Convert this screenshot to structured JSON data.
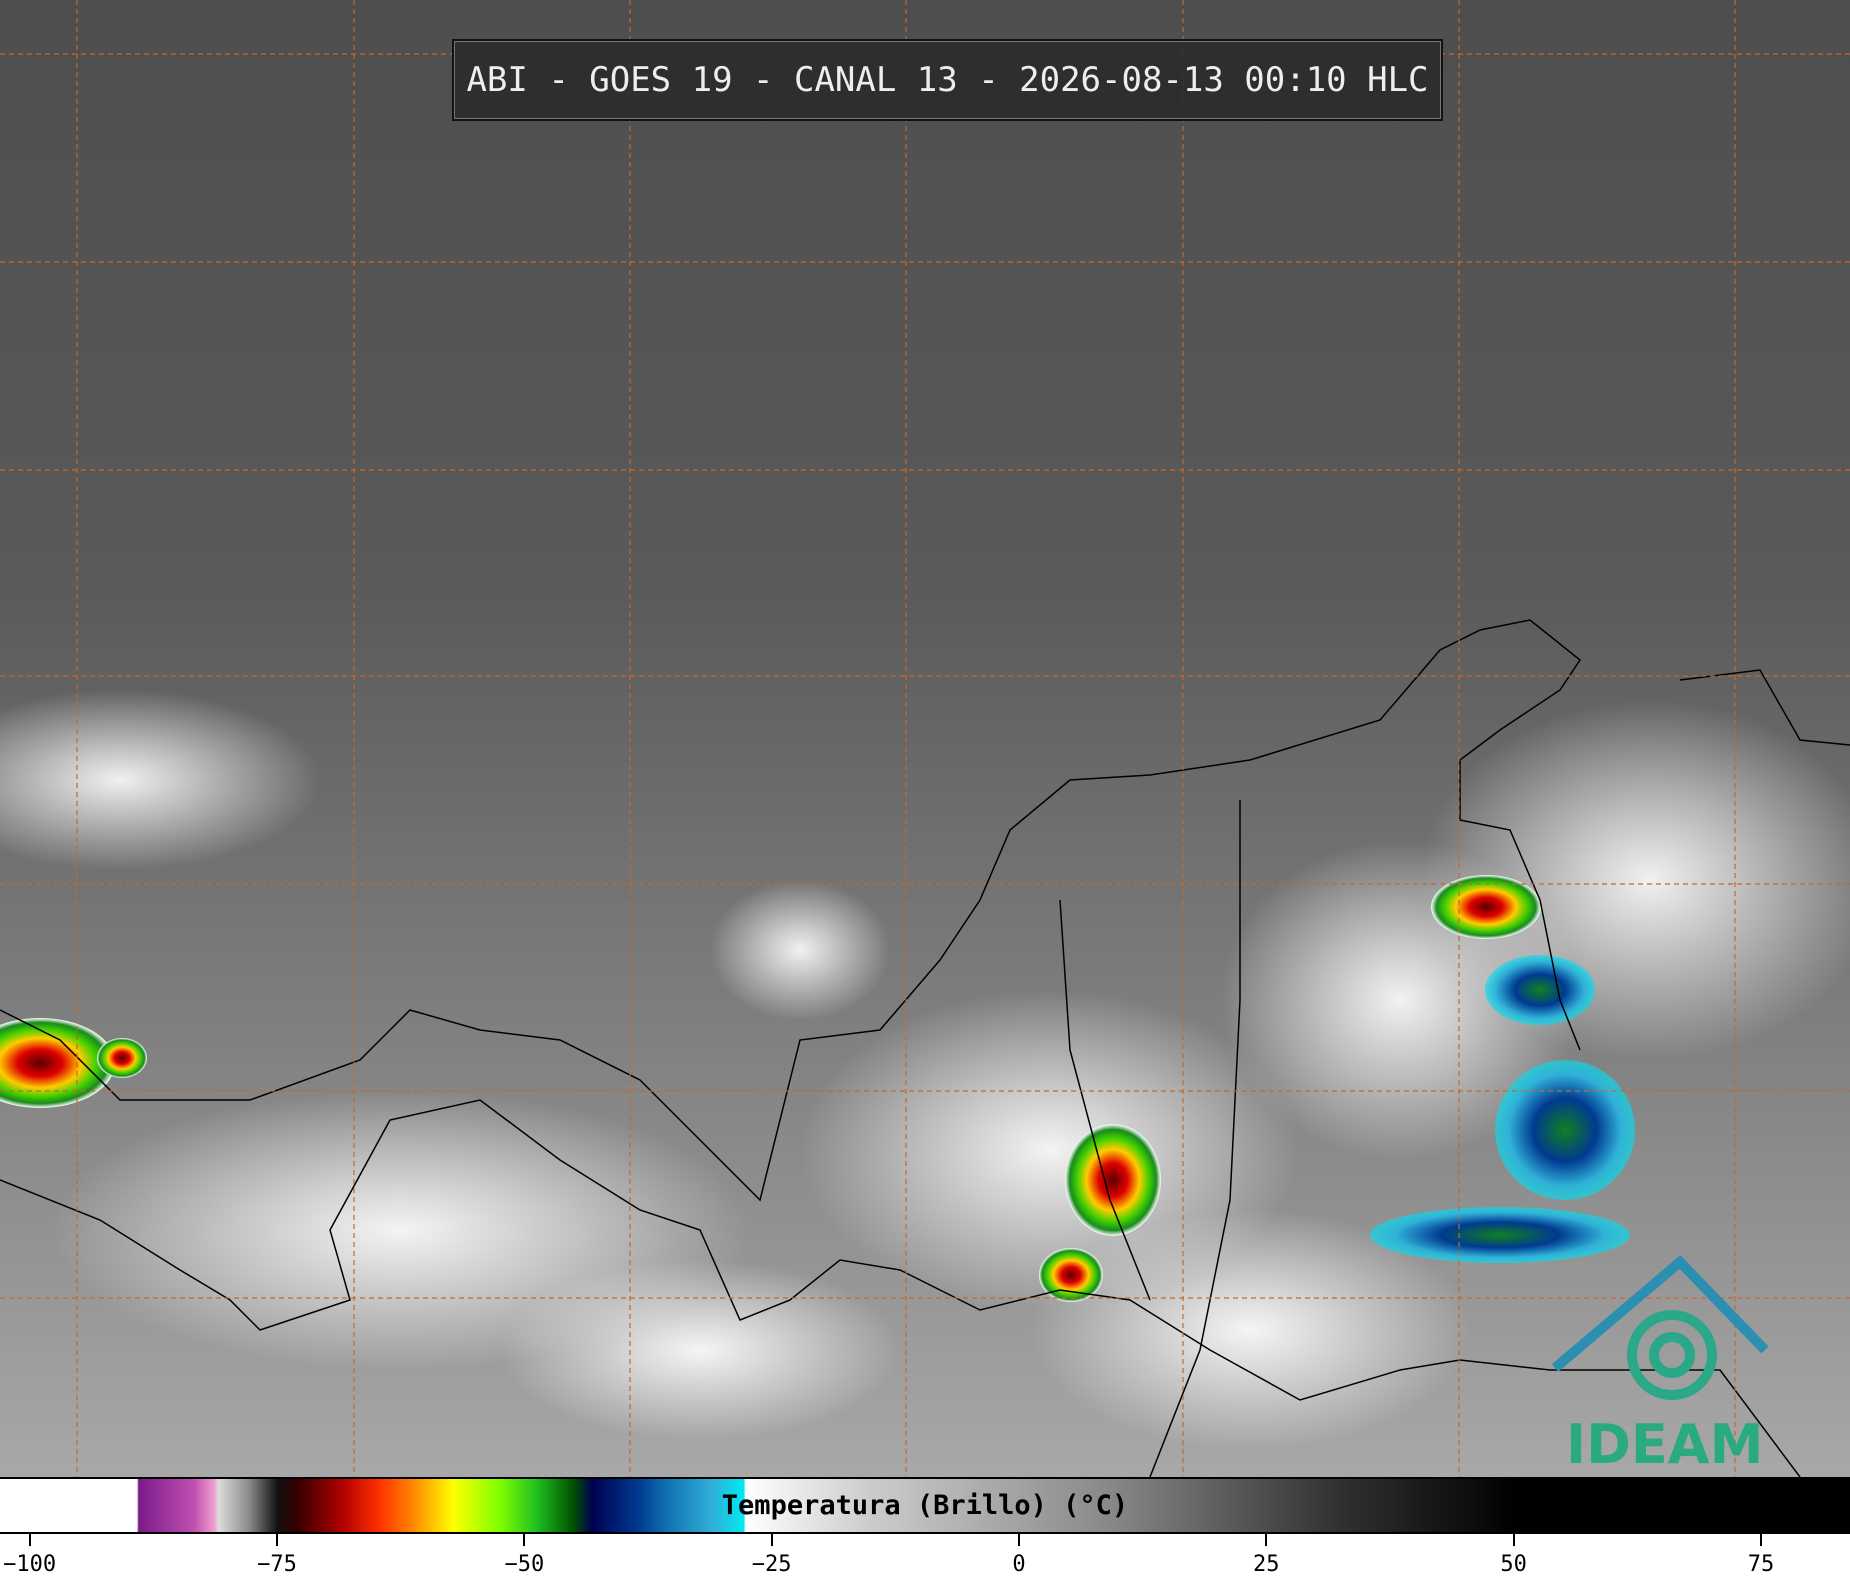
{
  "title": "ABI - GOES 19 - CANAL 13 - 2026-08-13 00:10 HLC",
  "colorbar": {
    "label": "Temperatura (Brillo) (°C)",
    "xlim": [
      -103,
      84
    ],
    "ticks": [
      {
        "value": -100,
        "label": "−100"
      },
      {
        "value": -75,
        "label": "−75"
      },
      {
        "value": -50,
        "label": "−50"
      },
      {
        "value": -25,
        "label": "−25"
      },
      0,
      25,
      50,
      75
    ]
  },
  "logo": "IDEAM"
}
